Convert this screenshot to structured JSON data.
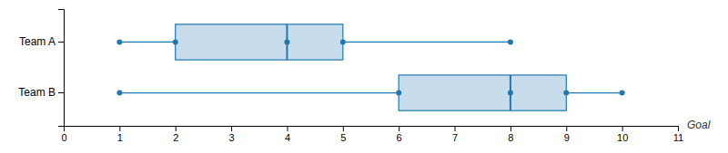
{
  "chart_data": {
    "type": "box",
    "orientation": "horizontal",
    "categories": [
      "Team A",
      "Team B"
    ],
    "boxes": [
      {
        "min": 1,
        "q1": 2,
        "median": 4,
        "q3": 5,
        "max": 8
      },
      {
        "min": 1,
        "q1": 6,
        "median": 8,
        "q3": 9,
        "max": 10
      }
    ],
    "xlabel": "Goal",
    "xlim": [
      0,
      11
    ],
    "xticks": [
      0,
      1,
      2,
      3,
      4,
      5,
      6,
      7,
      8,
      9,
      10,
      11
    ],
    "grid": false
  }
}
